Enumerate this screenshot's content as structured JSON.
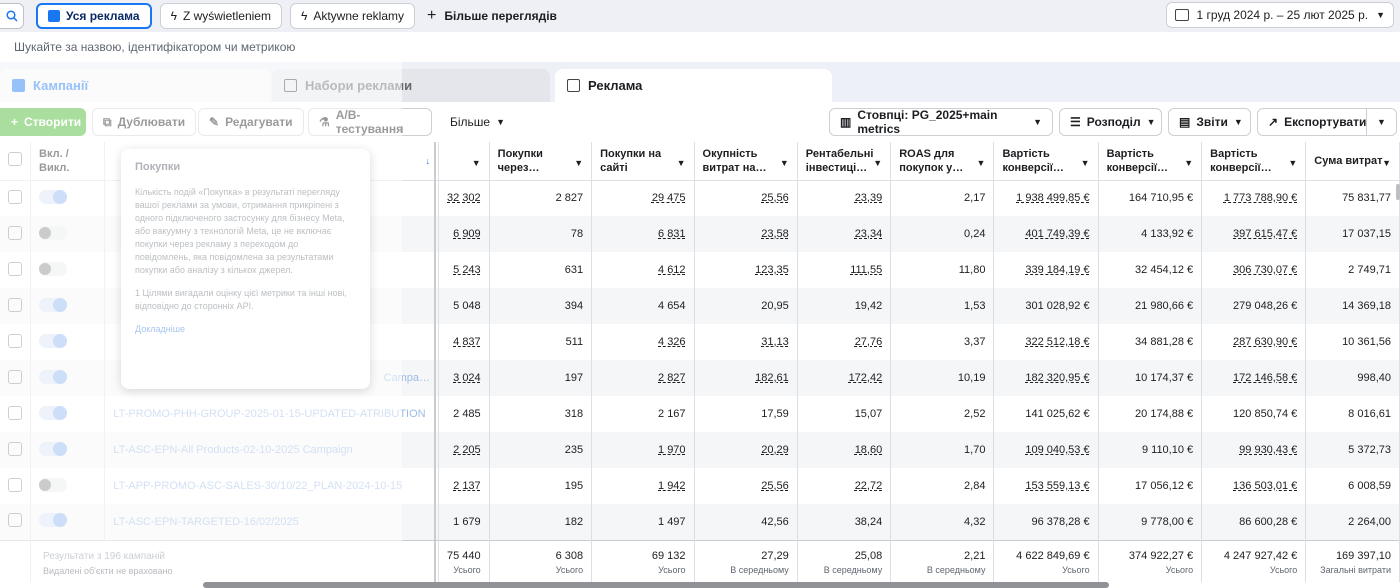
{
  "topbar": {
    "views": [
      {
        "label": "Уся реклама",
        "active": true,
        "icon": "folder-icon"
      },
      {
        "label": "Z wyświetleniem",
        "active": false,
        "icon": "bolt-icon"
      },
      {
        "label": "Aktywne reklamy",
        "active": false,
        "icon": "bolt-icon"
      }
    ],
    "more_views": "Більше переглядів",
    "date_range": "1 груд 2024 р. – 25 лют 2025 р."
  },
  "search": {
    "placeholder": "Шукайте за назвою, ідентифікатором чи метрикою"
  },
  "tabs": {
    "campaigns": "Кампанії",
    "ad_sets": "Набори реклами",
    "ads": "Реклама"
  },
  "toolbar": {
    "create": "Створити",
    "duplicate": "Дублювати",
    "edit": "Редагувати",
    "ab_test": "A/B-тестування",
    "more": "Більше",
    "columns": "Стовпці: PG_2025+main metrics",
    "breakdown": "Розподіл",
    "reports": "Звіти",
    "export": "Експортувати"
  },
  "table": {
    "headers": {
      "delivery": "Вкл. / Викл.",
      "purchases_through": "Покупки через…",
      "purchases_site": "Покупки на сайті",
      "return_on_spend": "Окупність витрат на…",
      "roi": "Рентабельні інвестиці…",
      "roas": "ROAS для покупок у…",
      "conv_value_1": "Вартість конверсії…",
      "conv_value_2": "Вартість конверсії…",
      "conv_value_3": "Вартість конверсії…",
      "spend": "Сума витрат"
    },
    "rows": [
      {
        "name": "",
        "toggle": true,
        "purchases": "32 302",
        "through": "2 827",
        "site": "29 475",
        "ros": "25,56",
        "roi": "23,39",
        "roas": "2,17",
        "cv1": "1 938 499,85 €",
        "cv2": "164 710,95 €",
        "cv3": "1 773 788,90 €",
        "spend": "75 831,77"
      },
      {
        "name": "",
        "toggle": false,
        "purchases": "6 909",
        "through": "78",
        "site": "6 831",
        "ros": "23,58",
        "roi": "23,34",
        "roas": "0,24",
        "cv1": "401 749,39 €",
        "cv2": "4 133,92 €",
        "cv3": "397 615,47 €",
        "spend": "17 037,15"
      },
      {
        "name": "",
        "toggle": false,
        "purchases": "5 243",
        "through": "631",
        "site": "4 612",
        "ros": "123,35",
        "roi": "111,55",
        "roas": "11,80",
        "cv1": "339 184,19 €",
        "cv2": "32 454,12 €",
        "cv3": "306 730,07 €",
        "spend": "2 749,71"
      },
      {
        "name": "",
        "toggle": true,
        "purchases": "5 048",
        "through": "394",
        "site": "4 654",
        "ros": "20,95",
        "roi": "19,42",
        "roas": "1,53",
        "cv1": "301 028,92 €",
        "cv2": "21 980,66 €",
        "cv3": "279 048,26 €",
        "spend": "14 369,18"
      },
      {
        "name": "",
        "toggle": true,
        "purchases": "4 837",
        "through": "511",
        "site": "4 326",
        "ros": "31,13",
        "roi": "27,76",
        "roas": "3,37",
        "cv1": "322 512,18 €",
        "cv2": "34 881,28 €",
        "cv3": "287 630,90 €",
        "spend": "10 361,56"
      },
      {
        "name": "Campa…",
        "toggle": true,
        "purchases": "3 024",
        "through": "197",
        "site": "2 827",
        "ros": "182,61",
        "roi": "172,42",
        "roas": "10,19",
        "cv1": "182 320,95 €",
        "cv2": "10 174,37 €",
        "cv3": "172 146,58 €",
        "spend": "998,40"
      },
      {
        "name": "LT-PROMO-PHH-GROUP-2025-01-15-UPDATED-ATRIBUTION",
        "toggle": true,
        "purchases": "2 485",
        "through": "318",
        "site": "2 167",
        "ros": "17,59",
        "roi": "15,07",
        "roas": "2,52",
        "cv1": "141 025,62 €",
        "cv2": "20 174,88 €",
        "cv3": "120 850,74 €",
        "spend": "8 016,61"
      },
      {
        "name": "LT-ASC-EPN-All Products-02-10-2025 Campaign",
        "toggle": true,
        "purchases": "2 205",
        "through": "235",
        "site": "1 970",
        "ros": "20,29",
        "roi": "18,60",
        "roas": "1,70",
        "cv1": "109 040,53 €",
        "cv2": "9 110,10 €",
        "cv3": "99 930,43 €",
        "spend": "5 372,73"
      },
      {
        "name": "LT-APP-PROMO-ASC-SALES-30/10/22_PLAN-2024-10-15",
        "toggle": false,
        "purchases": "2 137",
        "through": "195",
        "site": "1 942",
        "ros": "25,56",
        "roi": "22,72",
        "roas": "2,84",
        "cv1": "153 559,13 €",
        "cv2": "17 056,12 €",
        "cv3": "136 503,01 €",
        "spend": "6 008,59"
      },
      {
        "name": "LT-ASC-EPN-TARGETED-16/02/2025",
        "toggle": true,
        "purchases": "1 679",
        "through": "182",
        "site": "1 497",
        "ros": "42,56",
        "roi": "38,24",
        "roas": "4,32",
        "cv1": "96 378,28 €",
        "cv2": "9 778,00 €",
        "cv3": "86 600,28 €",
        "spend": "2 264,00"
      }
    ],
    "totals": {
      "label": "Результати з 196 кампаній",
      "sublabel": "Видалені об'єкти не враховано",
      "purchases": "75 440",
      "through": "6 308",
      "site": "69 132",
      "ros": "27,29",
      "roi": "25,08",
      "roas": "2,21",
      "cv1": "4 622 849,69 €",
      "cv2": "374 922,27 €",
      "cv3": "4 247 927,42 €",
      "spend": "169 397,10",
      "sum_label": "Усього",
      "avg_label": "В середньому",
      "spend_label": "Загальні витрати"
    }
  },
  "tooltip": {
    "title": "Покупки",
    "body": "Кількість подій «Покупка» в результаті перегляду вашої реклами за умови, отримання прикріпені з одного підключеного застосунку для бізнесу Meta, або вакуумну з технологій Meta, це не включає покупки через рекламу з переходом до повідомлень, яка повідомлена за результатами покупки або аналізу з кількох джерел.",
    "note": "1 Цілями вигадали оцінку цієї метрики та інші нові, відповідно до сторонніх API.",
    "link": "Докладніше"
  },
  "colors": {
    "accent": "#1877f2",
    "create": "#42b72a"
  }
}
